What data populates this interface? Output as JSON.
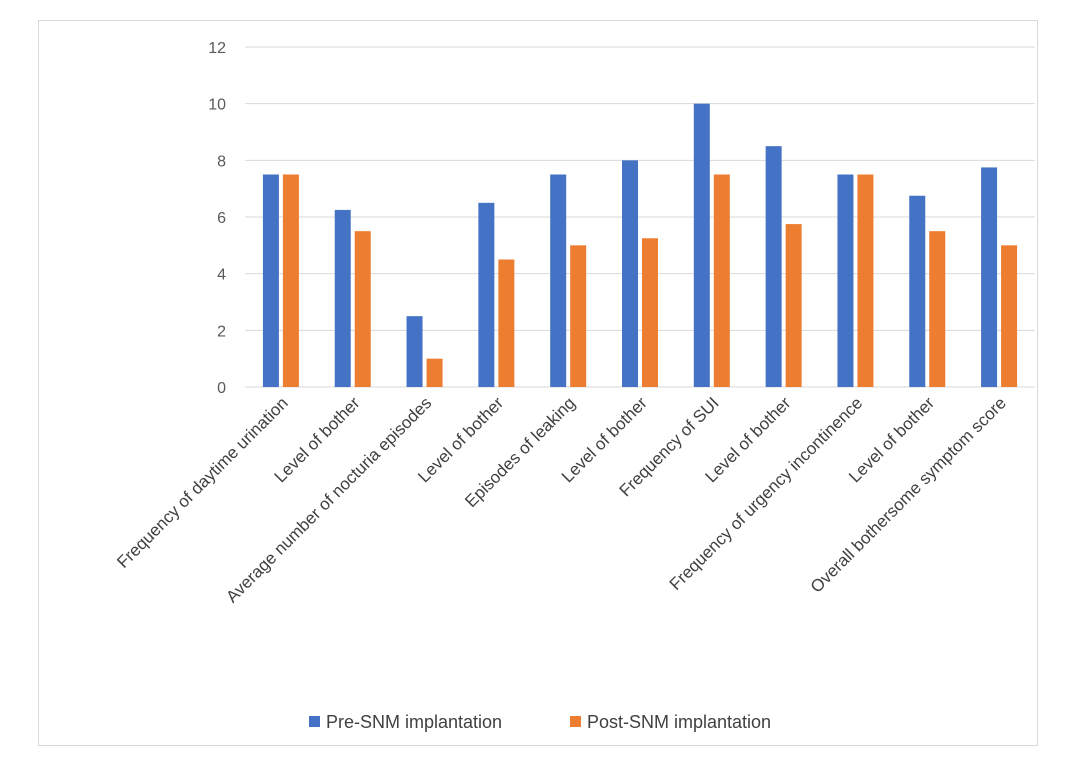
{
  "chart_data": {
    "type": "bar",
    "categories": [
      "Frequency of daytime urination",
      "Level of bother",
      "Average number of nocturia episodes",
      "Level of bother",
      "Episodes of leaking",
      "Level of bother",
      "Frequency of SUI",
      "Level of bother",
      "Frequency of urgency incontinence",
      "Level of bother",
      "Overall bothersome symptom score"
    ],
    "series": [
      {
        "name": "Pre-SNM implantation",
        "color": "#4472c4",
        "values": [
          7.5,
          6.25,
          2.5,
          6.5,
          7.5,
          8,
          10,
          8.5,
          7.5,
          6.75,
          7.75
        ]
      },
      {
        "name": "Post-SNM implantation",
        "color": "#ed7d31",
        "values": [
          7.5,
          5.5,
          1,
          4.5,
          5,
          5.25,
          7.5,
          5.75,
          7.5,
          5.5,
          5
        ]
      }
    ],
    "yticks": [
      "0",
      "2",
      "4",
      "6",
      "8",
      "10",
      "12"
    ],
    "ylim": [
      0,
      12
    ],
    "grid": true,
    "legend": "bottom-center",
    "gridColor": "#d9d9d9",
    "axisColor": "#d9d9d9"
  }
}
